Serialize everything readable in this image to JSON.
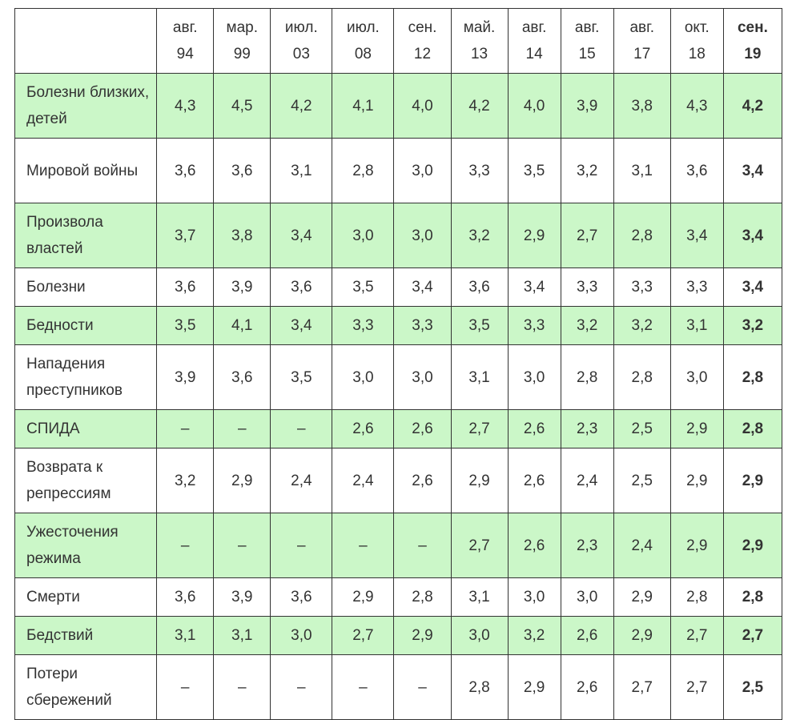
{
  "chart_data": {
    "type": "table",
    "columns": [
      {
        "month": "авг.",
        "year": "94"
      },
      {
        "month": "мар.",
        "year": "99"
      },
      {
        "month": "июл.",
        "year": "03"
      },
      {
        "month": "июл.",
        "year": "08"
      },
      {
        "month": "сен.",
        "year": "12"
      },
      {
        "month": "май.",
        "year": "13"
      },
      {
        "month": "авг.",
        "year": "14"
      },
      {
        "month": "авг.",
        "year": "15"
      },
      {
        "month": "авг.",
        "year": "17"
      },
      {
        "month": "окт.",
        "year": "18"
      },
      {
        "month": "сен.",
        "year": "19"
      }
    ],
    "rows": [
      {
        "label": "Болезни близких, детей",
        "values": [
          "4,3",
          "4,5",
          "4,2",
          "4,1",
          "4,0",
          "4,2",
          "4,0",
          "3,9",
          "3,8",
          "4,3",
          "4,2"
        ],
        "shaded": true,
        "tall": true
      },
      {
        "label": "Мировой войны",
        "values": [
          "3,6",
          "3,6",
          "3,1",
          "2,8",
          "3,0",
          "3,3",
          "3,5",
          "3,2",
          "3,1",
          "3,6",
          "3,4"
        ],
        "shaded": false,
        "tall": true
      },
      {
        "label": "Произвола властей",
        "values": [
          "3,7",
          "3,8",
          "3,4",
          "3,0",
          "3,0",
          "3,2",
          "2,9",
          "2,7",
          "2,8",
          "3,4",
          "3,4"
        ],
        "shaded": true,
        "tall": true
      },
      {
        "label": "Болезни",
        "values": [
          "3,6",
          "3,9",
          "3,6",
          "3,5",
          "3,4",
          "3,6",
          "3,4",
          "3,3",
          "3,3",
          "3,3",
          "3,4"
        ],
        "shaded": false,
        "tall": false
      },
      {
        "label": "Бедности",
        "values": [
          "3,5",
          "4,1",
          "3,4",
          "3,3",
          "3,3",
          "3,5",
          "3,3",
          "3,2",
          "3,2",
          "3,1",
          "3,2"
        ],
        "shaded": true,
        "tall": false
      },
      {
        "label": "Нападения преступников",
        "values": [
          "3,9",
          "3,6",
          "3,5",
          "3,0",
          "3,0",
          "3,1",
          "3,0",
          "2,8",
          "2,8",
          "3,0",
          "2,8"
        ],
        "shaded": false,
        "tall": true
      },
      {
        "label": "СПИДА",
        "values": [
          "–",
          "–",
          "–",
          "2,6",
          "2,6",
          "2,7",
          "2,6",
          "2,3",
          "2,5",
          "2,9",
          "2,8"
        ],
        "shaded": true,
        "tall": false
      },
      {
        "label": "Возврата к репрессиям",
        "values": [
          "3,2",
          "2,9",
          "2,4",
          "2,4",
          "2,6",
          "2,9",
          "2,6",
          "2,4",
          "2,5",
          "2,9",
          "2,9"
        ],
        "shaded": false,
        "tall": true
      },
      {
        "label": "Ужесточения режима",
        "values": [
          "–",
          "–",
          "–",
          "–",
          "–",
          "2,7",
          "2,6",
          "2,3",
          "2,4",
          "2,9",
          "2,9"
        ],
        "shaded": true,
        "tall": true
      },
      {
        "label": "Смерти",
        "values": [
          "3,6",
          "3,9",
          "3,6",
          "2,9",
          "2,8",
          "3,1",
          "3,0",
          "3,0",
          "2,9",
          "2,8",
          "2,8"
        ],
        "shaded": false,
        "tall": false
      },
      {
        "label": "Бедствий",
        "values": [
          "3,1",
          "3,1",
          "3,0",
          "2,7",
          "2,9",
          "3,0",
          "3,2",
          "2,6",
          "2,9",
          "2,7",
          "2,7"
        ],
        "shaded": true,
        "tall": false
      },
      {
        "label": "Потери сбережений",
        "values": [
          "–",
          "–",
          "–",
          "–",
          "–",
          "2,8",
          "2,9",
          "2,6",
          "2,7",
          "2,7",
          "2,5"
        ],
        "shaded": false,
        "tall": true
      }
    ]
  }
}
